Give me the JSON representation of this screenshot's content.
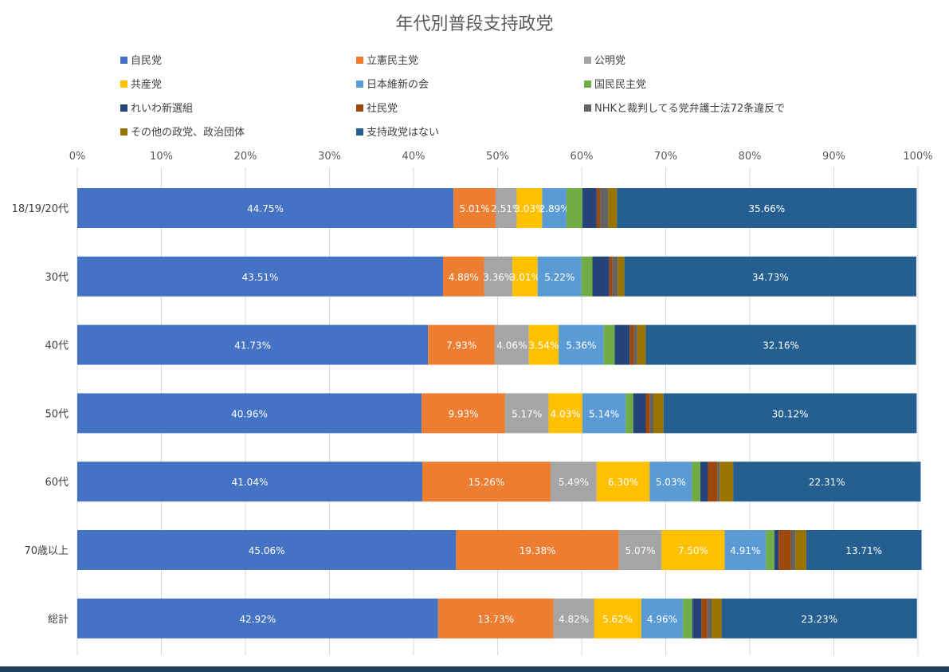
{
  "chart_data": {
    "type": "bar",
    "orientation": "horizontal",
    "stacked": "100%",
    "title": "年代別普段支持政党",
    "categories": [
      "18/19/20代",
      "30代",
      "40代",
      "50代",
      "60代",
      "70歳以上",
      "総計"
    ],
    "x_ticks": [
      "0%",
      "10%",
      "20%",
      "30%",
      "40%",
      "50%",
      "60%",
      "70%",
      "80%",
      "90%",
      "100%"
    ],
    "xlim": [
      0,
      100
    ],
    "grid": "vertical",
    "legend_position": "top",
    "series": [
      {
        "name": "自民党",
        "color": "#4472c4",
        "values": [
          44.75,
          43.51,
          41.73,
          40.96,
          41.04,
          45.06,
          42.92
        ],
        "labels": [
          "44.75%",
          "43.51%",
          "41.73%",
          "40.96%",
          "41.04%",
          "45.06%",
          "42.92%"
        ]
      },
      {
        "name": "立憲民主党",
        "color": "#ed7d31",
        "values": [
          5.01,
          4.88,
          7.93,
          9.93,
          15.26,
          19.38,
          13.73
        ],
        "labels": [
          "5.01%",
          "4.88%",
          "7.93%",
          "9.93%",
          "15.26%",
          "19.38%",
          "13.73%"
        ]
      },
      {
        "name": "公明党",
        "color": "#a5a5a5",
        "values": [
          2.51,
          3.36,
          4.06,
          5.17,
          5.49,
          5.07,
          4.82
        ],
        "labels": [
          "2.51%",
          "3.36%",
          "4.06%",
          "5.17%",
          "5.49%",
          "5.07%",
          "4.82%"
        ]
      },
      {
        "name": "共産党",
        "color": "#ffc000",
        "values": [
          3.03,
          3.01,
          3.54,
          4.03,
          6.3,
          7.5,
          5.62
        ],
        "labels": [
          "3.03%",
          "3.01%",
          "3.54%",
          "4.03%",
          "6.30%",
          "7.50%",
          "5.62%"
        ]
      },
      {
        "name": "日本維新の会",
        "color": "#5b9bd5",
        "values": [
          2.89,
          5.22,
          5.36,
          5.14,
          5.03,
          4.91,
          4.96
        ],
        "labels": [
          "2.89%",
          "5.22%",
          "5.36%",
          "5.14%",
          "5.03%",
          "4.91%",
          "4.96%"
        ]
      },
      {
        "name": "国民民主党",
        "color": "#70ad47",
        "values": [
          1.9,
          1.3,
          1.3,
          0.9,
          1.0,
          1.0,
          1.1
        ],
        "labels": [
          "",
          "",
          "",
          "",
          "",
          "",
          ""
        ]
      },
      {
        "name": "れいわ新選組",
        "color": "#264478",
        "values": [
          1.7,
          2.0,
          1.8,
          1.5,
          0.9,
          0.5,
          1.1
        ],
        "labels": [
          "",
          "",
          "",
          "",
          "",
          "",
          ""
        ]
      },
      {
        "name": "社民党",
        "color": "#9e480e",
        "values": [
          0.4,
          0.4,
          0.5,
          0.5,
          1.1,
          1.5,
          0.7
        ],
        "labels": [
          "",
          "",
          "",
          "",
          "",
          "",
          ""
        ]
      },
      {
        "name": "NHKと裁判してる党弁護士法72条違反で",
        "color": "#636363",
        "values": [
          1.0,
          0.6,
          0.4,
          0.4,
          0.3,
          0.5,
          0.5
        ],
        "labels": [
          "",
          "",
          "",
          "",
          "",
          "",
          ""
        ]
      },
      {
        "name": "その他の政党、政治団体",
        "color": "#997300",
        "values": [
          1.0,
          0.8,
          1.0,
          1.2,
          1.6,
          1.3,
          1.2
        ],
        "labels": [
          "",
          "",
          "",
          "",
          "",
          "",
          ""
        ]
      },
      {
        "name": "支持政党はない",
        "color": "#255e91",
        "values": [
          35.66,
          34.73,
          32.16,
          30.12,
          22.31,
          13.71,
          23.23
        ],
        "labels": [
          "35.66%",
          "34.73%",
          "32.16%",
          "30.12%",
          "22.31%",
          "13.71%",
          "23.23%"
        ]
      }
    ]
  }
}
